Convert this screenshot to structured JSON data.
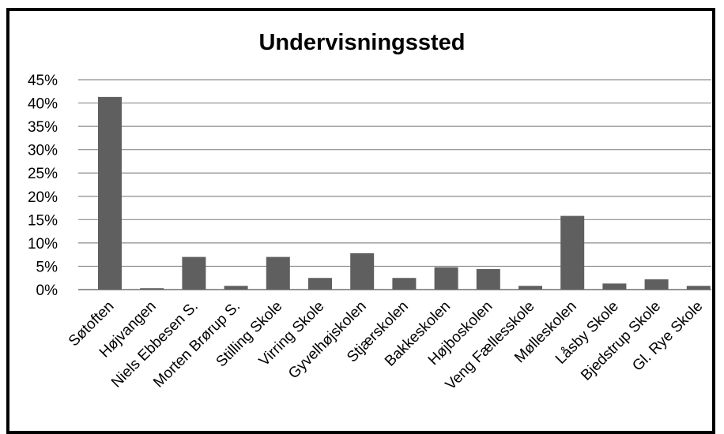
{
  "chart_data": {
    "type": "bar",
    "title": "Undervisningssted",
    "xlabel": "",
    "ylabel": "",
    "ylim": [
      0,
      45
    ],
    "y_ticks": [
      "0%",
      "5%",
      "10%",
      "15%",
      "20%",
      "25%",
      "30%",
      "35%",
      "40%",
      "45%"
    ],
    "grid": true,
    "legend": "none",
    "bar_color": "#5f5f5f",
    "categories": [
      "Søtoften",
      "Højvangen",
      "Niels Ebbesen S.",
      "Morten Brørup S.",
      "Stilling Skole",
      "Virring Skole",
      "Gyvelhøjskolen",
      "Stjærskolen",
      "Bakkeskolen",
      "Højboskolen",
      "Veng Fællesskole",
      "Mølleskolen",
      "Låsby Skole",
      "Bjedstrup Skole",
      "Gl. Rye Skole"
    ],
    "values": [
      41.3,
      0.3,
      7.0,
      0.8,
      7.0,
      2.5,
      7.8,
      2.5,
      4.8,
      4.4,
      0.8,
      15.8,
      1.3,
      2.2,
      0.8
    ]
  }
}
